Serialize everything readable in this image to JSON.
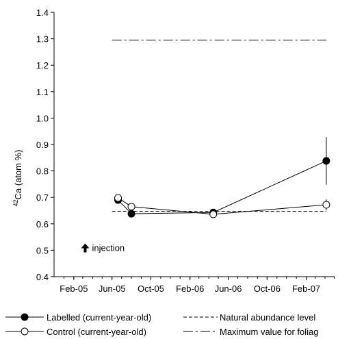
{
  "chart_data": {
    "type": "line",
    "xlabel": "",
    "ylabel_super": "42",
    "ylabel_main": "Ca (atom %)",
    "ylim": [
      0.4,
      1.4
    ],
    "y_ticks": [
      "0.4",
      "0.5",
      "0.6",
      "0.7",
      "0.8",
      "0.9",
      "1.0",
      "1.1",
      "1.2",
      "1.3",
      "1.4"
    ],
    "x_ticks": [
      "Feb-05",
      "Jun-05",
      "Oct-05",
      "Feb-06",
      "Jun-06",
      "Oct-06",
      "Feb-07"
    ],
    "xlim": [
      "2004-12-01",
      "2007-05-01"
    ],
    "grid": false,
    "series": [
      {
        "name": "Labelled (current-year-old)",
        "marker": "filled-circle",
        "color": "#000000",
        "points": [
          {
            "x": "2005-06-20",
            "y": 0.69
          },
          {
            "x": "2005-08-01",
            "y": 0.638
          },
          {
            "x": "2006-04-15",
            "y": 0.643
          },
          {
            "x": "2007-04-05",
            "y": 0.838,
            "err_low": 0.748,
            "err_high": 0.928
          }
        ]
      },
      {
        "name": "Control (current-year-old)",
        "marker": "open-circle",
        "color": "#000000",
        "points": [
          {
            "x": "2005-06-20",
            "y": 0.698
          },
          {
            "x": "2005-08-01",
            "y": 0.665
          },
          {
            "x": "2006-04-15",
            "y": 0.636
          },
          {
            "x": "2007-04-05",
            "y": 0.672,
            "err_low": 0.652,
            "err_high": 0.692
          }
        ]
      }
    ],
    "reference_lines": [
      {
        "name": "Natural abundance level",
        "y": 0.647,
        "style": "dashed",
        "x_from": "2005-06-01",
        "x_to": "2007-04-05"
      },
      {
        "name": "Maximum value for foliag",
        "y": 1.295,
        "style": "dash-dot",
        "x_from": "2005-06-01",
        "x_to": "2007-04-05"
      }
    ],
    "annotation": {
      "text": "injection",
      "x": "2005-04-25",
      "y": 0.51,
      "arrow": "up"
    },
    "legend_placement": "bottom"
  }
}
